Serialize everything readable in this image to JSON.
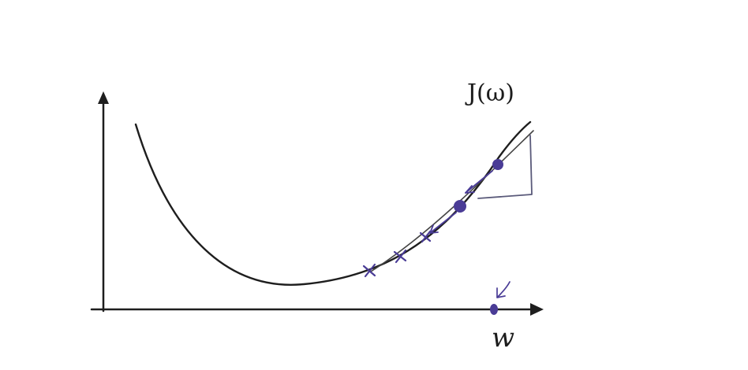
{
  "labels": {
    "function": "J(ω)",
    "axis_x": "w"
  },
  "colors": {
    "ink": "#1e1e1e",
    "marker": "#4a3c96",
    "pencil": "#5a5a7a"
  },
  "icons": {
    "iteration_marker": "x-cross",
    "point_marker": "filled-dot",
    "step_arrow": "small-arrowhead"
  }
}
